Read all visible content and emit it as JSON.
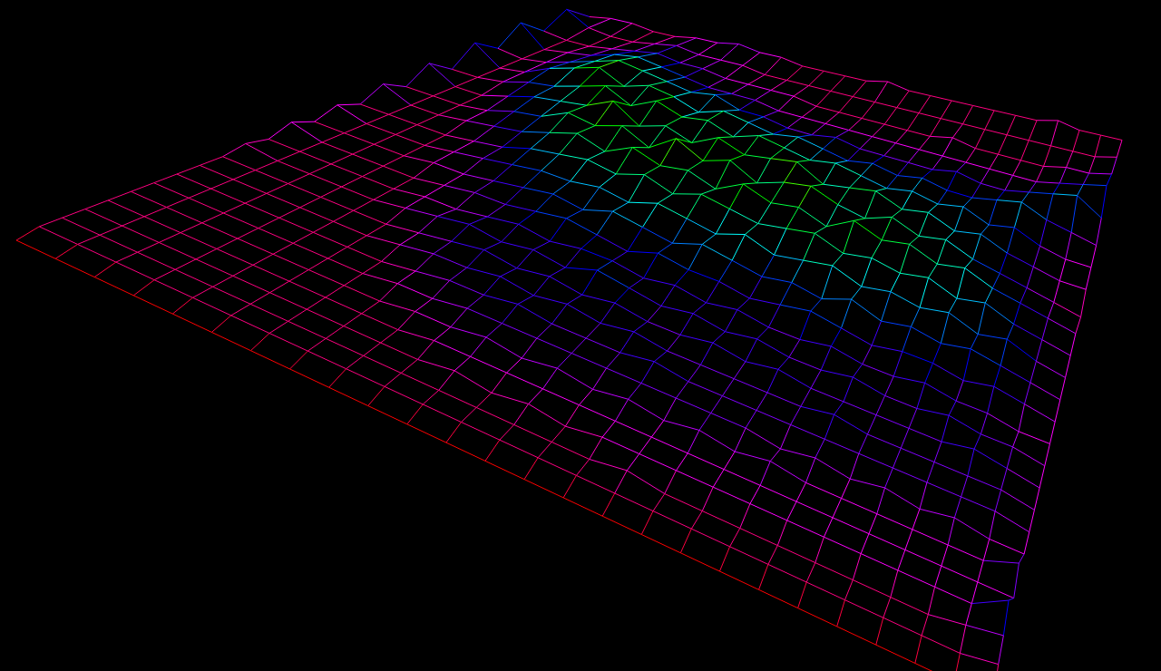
{
  "chart_data": {
    "type": "surface",
    "zlim": [
      0,
      10
    ],
    "tick_labels": false,
    "z": [
      [
        1,
        2,
        2,
        1,
        1,
        2,
        2,
        3,
        2,
        2,
        1,
        1,
        1,
        1,
        2,
        1,
        1,
        1,
        1,
        1,
        1,
        1,
        2,
        1,
        1,
        1
      ],
      [
        6,
        2,
        1,
        1,
        2,
        3,
        2,
        2,
        2,
        1,
        1,
        1,
        1,
        1,
        1,
        1,
        1,
        1,
        1,
        1,
        1,
        1,
        1,
        1,
        1,
        2
      ],
      [
        2,
        1,
        1,
        2,
        3,
        4,
        3,
        3,
        2,
        2,
        2,
        2,
        1,
        1,
        1,
        1,
        1,
        1,
        2,
        1,
        1,
        1,
        1,
        2,
        2,
        3
      ],
      [
        7,
        1,
        2,
        3,
        5,
        6,
        5,
        4,
        3,
        3,
        3,
        2,
        2,
        2,
        2,
        2,
        2,
        2,
        2,
        2,
        2,
        2,
        2,
        3,
        4,
        5
      ],
      [
        2,
        1,
        2,
        4,
        6,
        8,
        7,
        6,
        5,
        6,
        4,
        4,
        3,
        3,
        4,
        3,
        3,
        3,
        3,
        4,
        3,
        3,
        4,
        5,
        6,
        3
      ],
      [
        6,
        1,
        2,
        5,
        7,
        9,
        6,
        8,
        7,
        5,
        7,
        6,
        5,
        6,
        5,
        4,
        5,
        4,
        5,
        4,
        4,
        5,
        6,
        4,
        3,
        2
      ],
      [
        1,
        1,
        2,
        4,
        5,
        7,
        9,
        6,
        9,
        7,
        8,
        6,
        8,
        7,
        6,
        7,
        6,
        5,
        6,
        5,
        6,
        4,
        5,
        3,
        2,
        2
      ],
      [
        5,
        1,
        1,
        3,
        5,
        6,
        7,
        10,
        6,
        8,
        6,
        9,
        7,
        8,
        9,
        6,
        7,
        8,
        6,
        7,
        5,
        6,
        4,
        3,
        2,
        2
      ],
      [
        1,
        1,
        1,
        2,
        4,
        5,
        8,
        7,
        9,
        6,
        10,
        7,
        9,
        6,
        8,
        9,
        7,
        6,
        8,
        6,
        7,
        5,
        4,
        3,
        2,
        1
      ],
      [
        4,
        1,
        1,
        2,
        3,
        4,
        6,
        8,
        6,
        9,
        7,
        8,
        6,
        9,
        7,
        8,
        6,
        9,
        7,
        8,
        6,
        7,
        5,
        4,
        3,
        2
      ],
      [
        1,
        1,
        1,
        1,
        2,
        3,
        5,
        6,
        7,
        6,
        8,
        6,
        8,
        7,
        6,
        7,
        8,
        6,
        7,
        6,
        7,
        5,
        6,
        4,
        3,
        2
      ],
      [
        3,
        1,
        1,
        1,
        2,
        3,
        4,
        5,
        5,
        6,
        5,
        7,
        6,
        5,
        7,
        5,
        6,
        7,
        5,
        6,
        5,
        6,
        4,
        5,
        3,
        2
      ],
      [
        1,
        1,
        1,
        1,
        2,
        2,
        3,
        4,
        5,
        4,
        6,
        5,
        4,
        6,
        5,
        4,
        5,
        4,
        6,
        4,
        5,
        4,
        5,
        4,
        3,
        2
      ],
      [
        3,
        1,
        1,
        1,
        1,
        2,
        3,
        3,
        4,
        5,
        4,
        3,
        5,
        4,
        4,
        3,
        4,
        5,
        4,
        3,
        4,
        4,
        3,
        4,
        3,
        2
      ],
      [
        1,
        1,
        1,
        1,
        1,
        2,
        2,
        3,
        4,
        3,
        4,
        4,
        3,
        4,
        3,
        4,
        3,
        3,
        4,
        3,
        3,
        4,
        3,
        3,
        2,
        2
      ],
      [
        2,
        1,
        1,
        1,
        1,
        2,
        3,
        4,
        3,
        4,
        3,
        5,
        4,
        3,
        4,
        3,
        4,
        3,
        3,
        4,
        3,
        3,
        4,
        3,
        3,
        2
      ],
      [
        1,
        1,
        1,
        1,
        1,
        1,
        2,
        3,
        4,
        3,
        4,
        3,
        4,
        3,
        3,
        4,
        3,
        4,
        3,
        3,
        3,
        3,
        3,
        4,
        3,
        2
      ],
      [
        1,
        1,
        1,
        1,
        1,
        1,
        2,
        3,
        3,
        4,
        3,
        4,
        3,
        4,
        3,
        3,
        3,
        3,
        3,
        4,
        3,
        3,
        3,
        3,
        3,
        2
      ],
      [
        1,
        1,
        1,
        1,
        1,
        1,
        1,
        2,
        3,
        3,
        4,
        3,
        3,
        3,
        4,
        3,
        3,
        3,
        3,
        3,
        3,
        3,
        3,
        3,
        3,
        2
      ],
      [
        1,
        1,
        1,
        1,
        1,
        1,
        1,
        2,
        2,
        3,
        3,
        3,
        3,
        3,
        3,
        3,
        3,
        3,
        2,
        3,
        2,
        3,
        2,
        3,
        2,
        2
      ],
      [
        1,
        1,
        1,
        1,
        1,
        1,
        1,
        1,
        2,
        2,
        3,
        2,
        3,
        2,
        3,
        2,
        3,
        2,
        3,
        2,
        2,
        2,
        2,
        2,
        2,
        4
      ],
      [
        1,
        1,
        1,
        1,
        1,
        1,
        1,
        1,
        1,
        2,
        2,
        2,
        2,
        2,
        2,
        2,
        2,
        2,
        2,
        2,
        2,
        2,
        2,
        2,
        2,
        2
      ],
      [
        1,
        1,
        1,
        1,
        1,
        1,
        1,
        1,
        1,
        1,
        2,
        1,
        2,
        1,
        2,
        2,
        2,
        2,
        2,
        2,
        2,
        2,
        2,
        2,
        2,
        5
      ],
      [
        1,
        1,
        1,
        1,
        1,
        1,
        1,
        1,
        1,
        1,
        1,
        1,
        1,
        1,
        1,
        2,
        1,
        1,
        1,
        1,
        1,
        1,
        1,
        1,
        2,
        3
      ],
      [
        1,
        1,
        1,
        1,
        1,
        1,
        1,
        1,
        1,
        1,
        1,
        1,
        1,
        1,
        1,
        1,
        1,
        1,
        1,
        1,
        1,
        1,
        1,
        1,
        1,
        2
      ],
      [
        0,
        0,
        0,
        0,
        0,
        0,
        0,
        0,
        0,
        0,
        0,
        0,
        0,
        0,
        0,
        0,
        0,
        0,
        0,
        0,
        0,
        0,
        0,
        0,
        0,
        0
      ]
    ]
  }
}
